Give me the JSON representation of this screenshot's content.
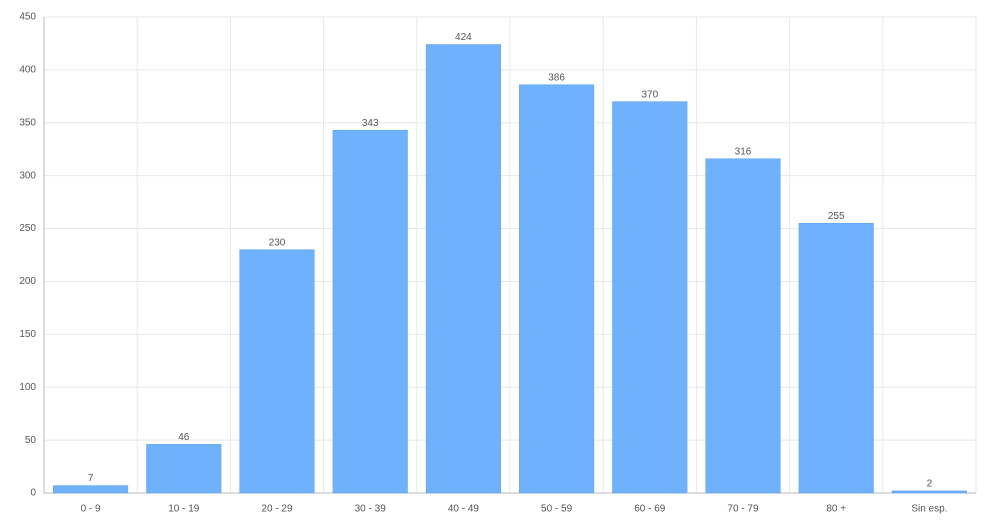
{
  "chart_data": {
    "type": "bar",
    "categories": [
      "0 - 9",
      "10 - 19",
      "20 - 29",
      "30 - 39",
      "40 - 49",
      "50 - 59",
      "60 - 69",
      "70 - 79",
      "80 +",
      "Sin esp."
    ],
    "values": [
      7,
      46,
      230,
      343,
      424,
      386,
      370,
      316,
      255,
      2
    ],
    "color": "#70b1fb",
    "ylim": [
      0,
      450
    ],
    "yticks": [
      0,
      50,
      100,
      150,
      200,
      250,
      300,
      350,
      400,
      450
    ],
    "grid": true
  }
}
